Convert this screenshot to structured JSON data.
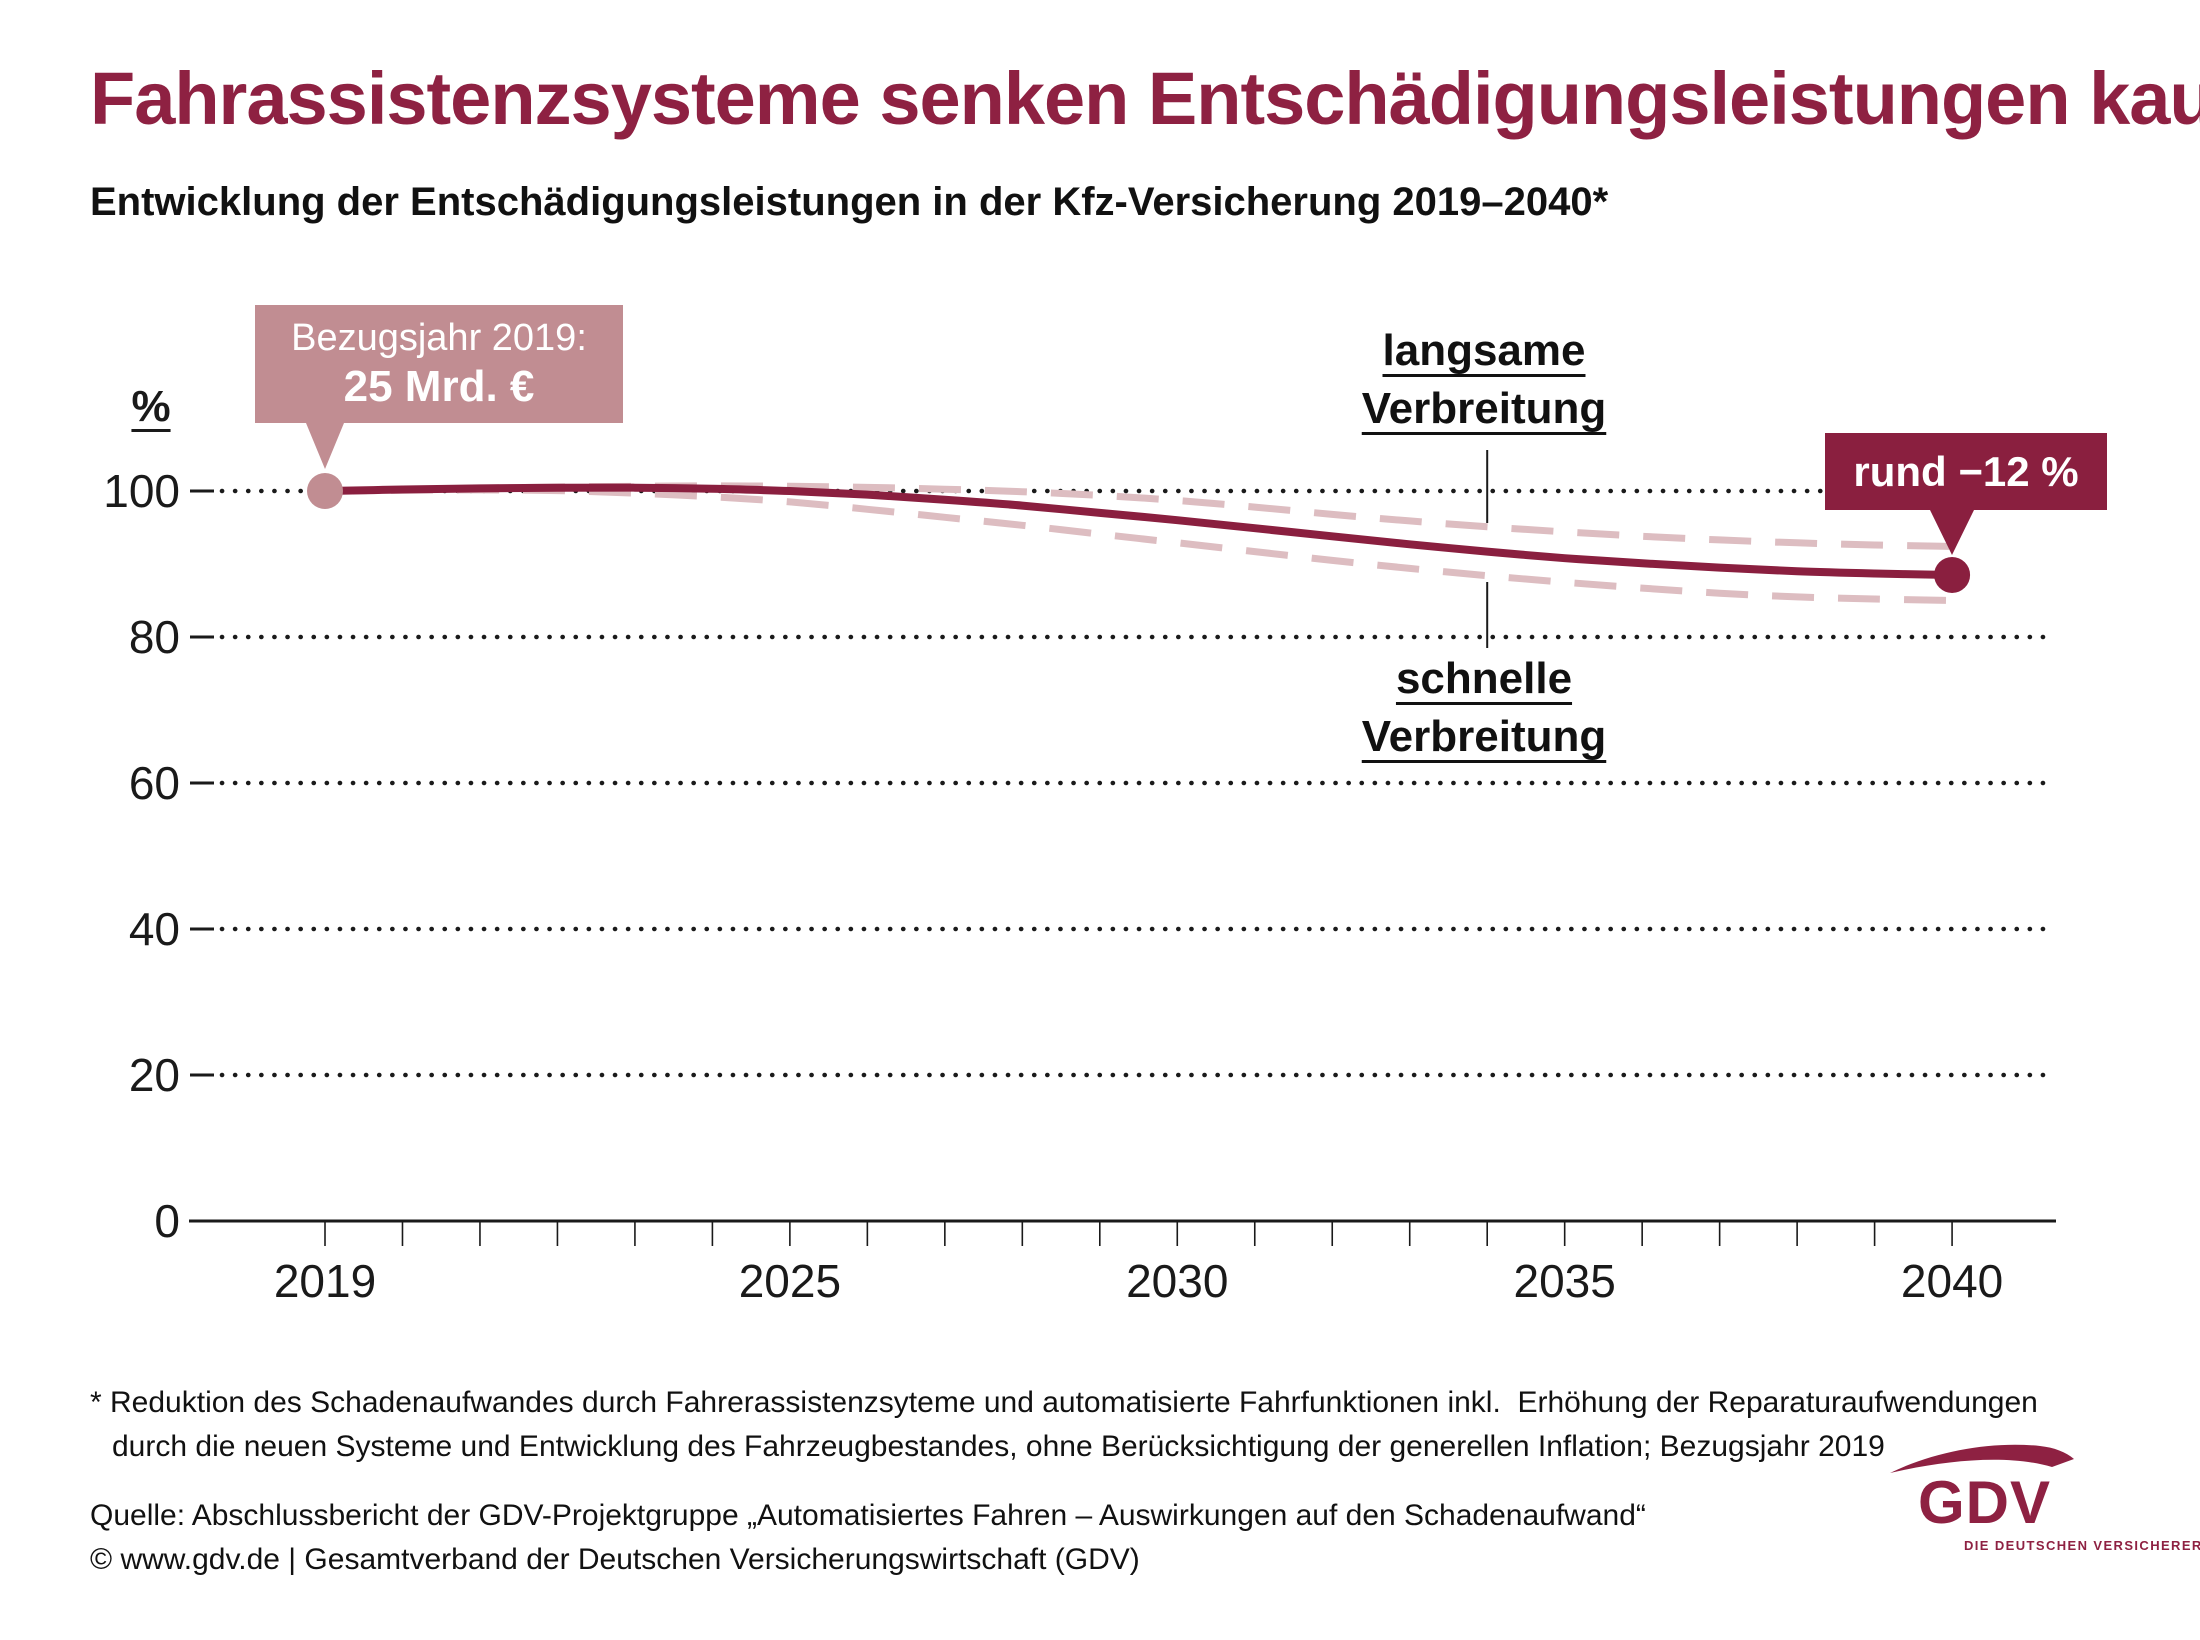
{
  "title": "Fahrassistenzsysteme senken Entschädigungsleistungen kaum",
  "subtitle": "Entwicklung der Entschädigungsleistungen in der Kfz-Versicherung 2019–2040*",
  "axis_unit": "%",
  "chart_data": {
    "type": "line",
    "x": [
      2019,
      2020,
      2021,
      2022,
      2023,
      2024,
      2025,
      2026,
      2027,
      2028,
      2029,
      2030,
      2031,
      2032,
      2033,
      2034,
      2035,
      2036,
      2037,
      2038,
      2039,
      2040
    ],
    "series": [
      {
        "name": "main",
        "style": "solid",
        "color": "#8a1f3f",
        "values": [
          100.0,
          100.2,
          100.35,
          100.45,
          100.45,
          100.3,
          100.0,
          99.5,
          98.8,
          98.0,
          97.0,
          96.0,
          94.9,
          93.8,
          92.7,
          91.7,
          90.8,
          90.1,
          89.5,
          89.0,
          88.7,
          88.5
        ]
      },
      {
        "name": "langsame Verbreitung",
        "style": "dashed",
        "color": "#ddbdc1",
        "values": [
          100.0,
          100.2,
          100.4,
          100.55,
          100.65,
          100.7,
          100.65,
          100.5,
          100.25,
          99.9,
          99.4,
          98.7,
          97.8,
          96.8,
          95.9,
          95.1,
          94.4,
          93.8,
          93.3,
          92.9,
          92.6,
          92.4
        ]
      },
      {
        "name": "schnelle Verbreitung",
        "style": "dashed",
        "color": "#ddbdc1",
        "values": [
          100.0,
          100.1,
          100.15,
          100.05,
          99.7,
          99.2,
          98.5,
          97.5,
          96.4,
          95.3,
          94.1,
          92.9,
          91.7,
          90.5,
          89.4,
          88.4,
          87.5,
          86.7,
          86.0,
          85.5,
          85.2,
          85.0
        ]
      }
    ],
    "ylabel": "%",
    "xlabel": "",
    "ylim": [
      0,
      107
    ],
    "yticks": [
      0,
      20,
      40,
      60,
      80,
      100
    ],
    "xticks": [
      2019,
      2025,
      2030,
      2035,
      2040
    ],
    "grid": "dotted horizontal gridlines",
    "legend_position": "none",
    "annotations": {
      "start_callout": {
        "line1": "Bezugsjahr 2019:",
        "line2": "25 Mrd. €",
        "x": 2019,
        "y": 100
      },
      "end_callout": {
        "text": "rund −12 %",
        "x": 2040,
        "y": 88.5
      },
      "label_slow": {
        "line1": "langsame",
        "line2": "Verbreitung",
        "points_to_series": "langsame Verbreitung"
      },
      "label_fast": {
        "line1": "schnelle",
        "line2": "Verbreitung",
        "points_to_series": "schnelle Verbreitung"
      }
    }
  },
  "footnote": {
    "line1": "* Reduktion des Schadenaufwandes durch Fahrerassistenzsyteme und automatisierte Fahrfunktionen inkl.  Erhöhung der Reparaturaufwendungen",
    "line2": "durch die neuen Systeme und Entwicklung des Fahrzeugbestandes, ohne Berücksichtigung der generellen Inflation; Bezugsjahr 2019"
  },
  "source": {
    "line1": "Quelle: Abschlussbericht der GDV-Projektgruppe „Automatisiertes Fahren – Auswirkungen auf den Schadenaufwand“",
    "line2": "© www.gdv.de | Gesamtverband der Deutschen Versicherungswirtschaft (GDV)"
  },
  "logo": {
    "name": "GDV",
    "tagline": "DIE DEUTSCHEN VERSICHERER"
  },
  "colors": {
    "brand": "#8e2142",
    "line": "#8a1f3f",
    "rose": "#c18d92",
    "dashed": "#ddbdc1",
    "text": "#1a1a1a"
  }
}
